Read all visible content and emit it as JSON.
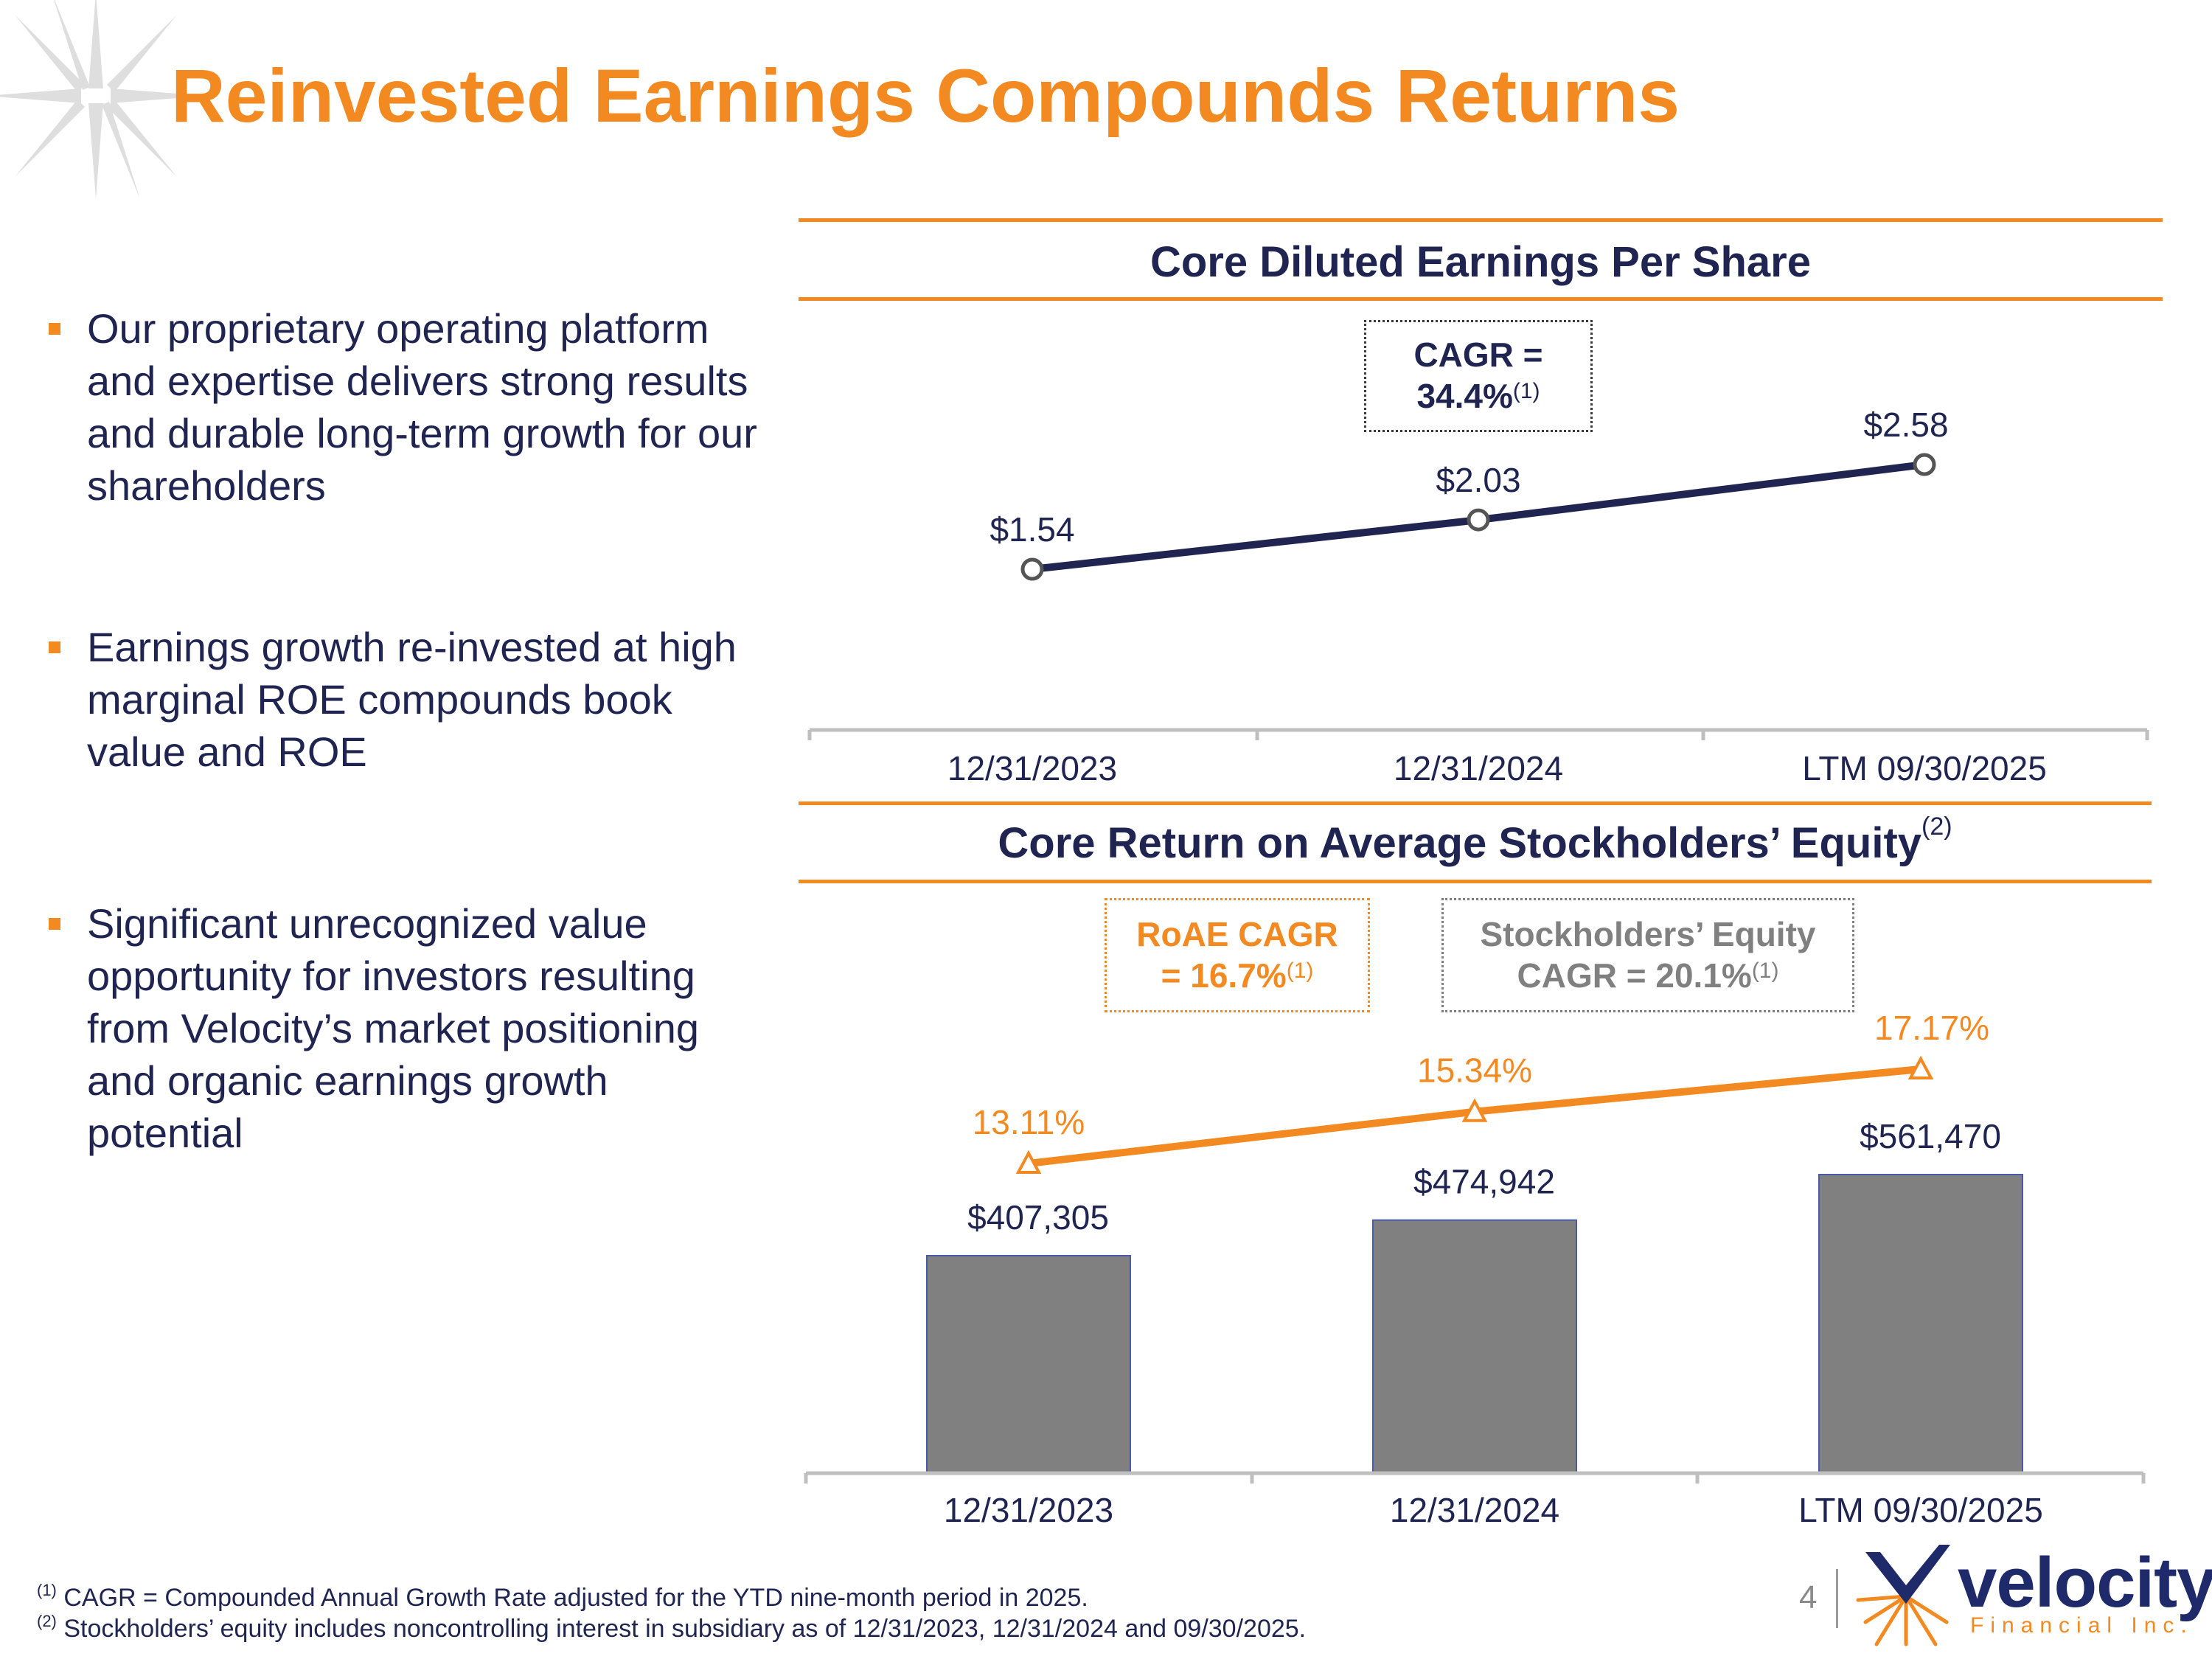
{
  "title": "Reinvested Earnings Compounds Returns",
  "bullets": [
    "Our proprietary operating platform and expertise delivers strong results and durable long-term growth for our shareholders",
    "Earnings growth re-invested at high marginal ROE compounds book value and ROE",
    "Significant unrecognized value opportunity for investors resulting from Velocity’s market positioning and organic earnings growth potential"
  ],
  "eps_section": {
    "title": "Core Diluted Earnings Per Share",
    "cagr_label": "CAGR =",
    "cagr_value": "34.4%",
    "cagr_note": "(1)"
  },
  "roae_section": {
    "title": "Core Return on Average Stockholders’ Equity",
    "title_note": "(2)",
    "roae_cagr_label": "RoAE CAGR",
    "roae_cagr_value": "= 16.7%",
    "roae_cagr_note": "(1)",
    "equity_cagr_label": "Stockholders’ Equity",
    "equity_cagr_value": "CAGR = 20.1%",
    "equity_cagr_note": "(1)"
  },
  "chart_data": [
    {
      "type": "line",
      "title": "Core Diluted Earnings Per Share",
      "categories": [
        "12/31/2023",
        "12/31/2024",
        "LTM 09/30/2025"
      ],
      "values": [
        1.54,
        2.03,
        2.58
      ],
      "value_labels": [
        "$1.54",
        "$2.03",
        "$2.58"
      ],
      "ylim": [
        0,
        3.2
      ],
      "colors": {
        "line": "#1f2451",
        "marker_fill": "#ffffff",
        "marker_stroke": "#555555",
        "axis": "#bfbfbf"
      }
    },
    {
      "type": "bar",
      "title": "Core Return on Average Stockholders’ Equity",
      "categories": [
        "12/31/2023",
        "12/31/2024",
        "LTM 09/30/2025"
      ],
      "series": [
        {
          "name": "Stockholders’ Equity",
          "type": "bar",
          "values": [
            407305,
            474942,
            561470
          ],
          "labels": [
            "$407,305",
            "$474,942",
            "$561,470"
          ],
          "color": "#808080"
        },
        {
          "name": "Core RoAE",
          "type": "line",
          "values": [
            13.11,
            15.34,
            17.17
          ],
          "labels": [
            "13.11%",
            "15.34%",
            "17.17%"
          ],
          "color": "#f28a21"
        }
      ],
      "bar_ylim": [
        0,
        1000000
      ],
      "line_ylim": [
        0,
        30
      ],
      "colors": {
        "axis": "#bfbfbf",
        "bar_border": "#4a5aa8"
      }
    }
  ],
  "footnotes": [
    {
      "mark": "(1)",
      "text": "CAGR = Compounded Annual Growth Rate adjusted for the YTD nine-month period in 2025."
    },
    {
      "mark": "(2)",
      "text": "Stockholders’ equity includes noncontrolling interest in subsidiary as of 12/31/2023, 12/31/2024 and 09/30/2025."
    }
  ],
  "page_number": "4",
  "logo": {
    "name": "velocity",
    "sub": "Financial Inc."
  },
  "colors": {
    "accent": "#f28a21",
    "navy": "#1f2451",
    "gray": "#808080"
  }
}
